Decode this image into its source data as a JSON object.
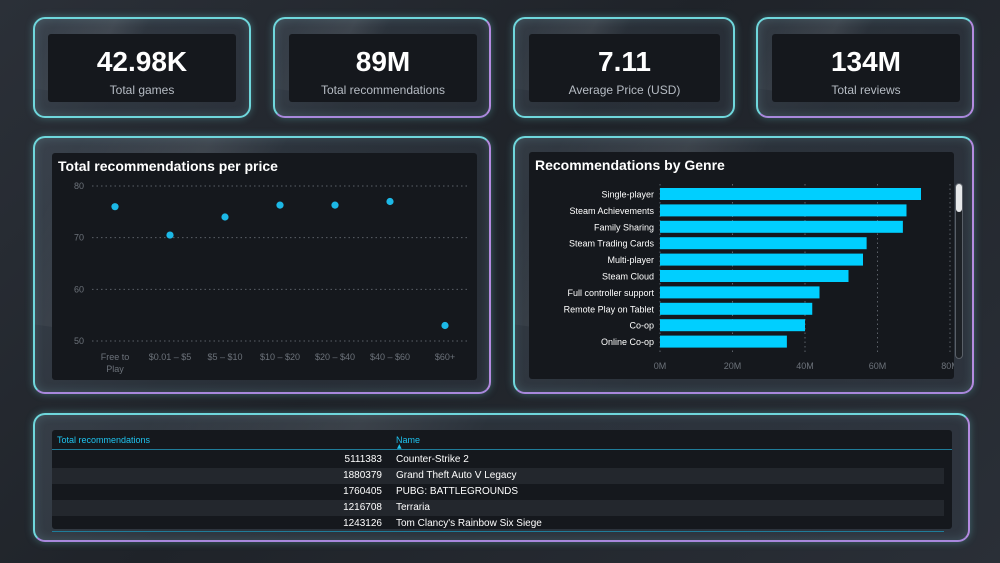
{
  "kpis": [
    {
      "value": "42.98K",
      "label": "Total games"
    },
    {
      "value": "89M",
      "label": "Total recommendations"
    },
    {
      "value": "7.11",
      "label": "Average Price (USD)"
    },
    {
      "value": "134M",
      "label": "Total reviews"
    }
  ],
  "scatter": {
    "title": "Total recommendations per price",
    "chart_data": {
      "type": "scatter",
      "categories": [
        "Free to Play",
        "$0.01 – $5",
        "$5 – $10",
        "$10 – $20",
        "$20 – $40",
        "$40 – $60",
        "$60+"
      ],
      "values": [
        76,
        70.5,
        74,
        76.3,
        76.3,
        77,
        53
      ],
      "ylim": [
        50,
        80
      ],
      "yticks": [
        "80",
        "70",
        "60",
        "50"
      ],
      "grid": true,
      "color": "#1cb8e6"
    }
  },
  "bar": {
    "title": "Recommendations by Genre",
    "chart_data": {
      "type": "bar",
      "orientation": "horizontal",
      "categories": [
        "Single-player",
        "Steam Achievements",
        "Family Sharing",
        "Steam Trading Cards",
        "Multi-player",
        "Steam Cloud",
        "Full controller support",
        "Remote Play on Tablet",
        "Co-op",
        "Online Co-op"
      ],
      "values": [
        72,
        68,
        67,
        57,
        56,
        52,
        44,
        42,
        40,
        35
      ],
      "xlim": [
        0,
        80
      ],
      "xticks": [
        "0M",
        "20M",
        "40M",
        "60M",
        "80M"
      ],
      "unit": "M",
      "color": "#00cfff"
    }
  },
  "table": {
    "headers": {
      "recommendations": "Total recommendations",
      "name": "Name"
    },
    "sort_indicator": "▲",
    "rows": [
      {
        "recommendations": "5111383",
        "name": "Counter-Strike 2"
      },
      {
        "recommendations": "1880379",
        "name": "Grand Theft Auto V Legacy"
      },
      {
        "recommendations": "1760405",
        "name": "PUBG: BATTLEGROUNDS"
      },
      {
        "recommendations": "1216708",
        "name": "Terraria"
      },
      {
        "recommendations": "1243126",
        "name": "Tom Clancy's Rainbow Six Siege"
      }
    ]
  }
}
